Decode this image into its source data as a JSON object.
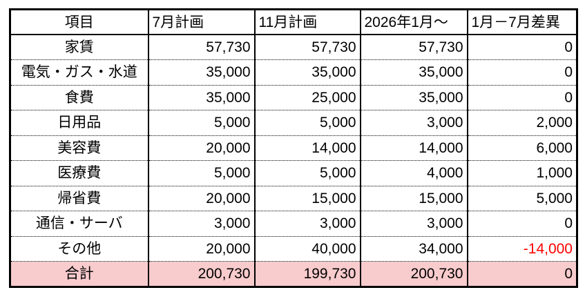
{
  "table": {
    "columns": [
      {
        "label": "項目"
      },
      {
        "label": "7月計画"
      },
      {
        "label": "11月計画"
      },
      {
        "label": "2026年1月～"
      },
      {
        "label": "1月－7月差異"
      }
    ],
    "rows": [
      {
        "label": "家賃",
        "values": [
          "57,730",
          "57,730",
          "57,730",
          "0"
        ]
      },
      {
        "label": "電気・ガス・水道",
        "values": [
          "35,000",
          "35,000",
          "35,000",
          "0"
        ]
      },
      {
        "label": "食費",
        "values": [
          "35,000",
          "25,000",
          "35,000",
          "0"
        ]
      },
      {
        "label": "日用品",
        "values": [
          "5,000",
          "5,000",
          "3,000",
          "2,000"
        ]
      },
      {
        "label": "美容費",
        "values": [
          "20,000",
          "14,000",
          "14,000",
          "6,000"
        ]
      },
      {
        "label": "医療費",
        "values": [
          "5,000",
          "5,000",
          "4,000",
          "1,000"
        ]
      },
      {
        "label": "帰省費",
        "values": [
          "20,000",
          "15,000",
          "15,000",
          "5,000"
        ]
      },
      {
        "label": "通信・サーバ",
        "values": [
          "3,000",
          "3,000",
          "3,000",
          "0"
        ]
      },
      {
        "label": "その他",
        "values": [
          "20,000",
          "40,000",
          "34,000",
          "-14,000"
        ]
      }
    ],
    "total_row": {
      "label": "合計",
      "values": [
        "200,730",
        "199,730",
        "200,730",
        "0"
      ]
    },
    "colors": {
      "negative_value": "#ff0000",
      "total_row_background": "#f8cbcd",
      "border": "#000000",
      "text": "#000000",
      "background": "#ffffff"
    }
  }
}
